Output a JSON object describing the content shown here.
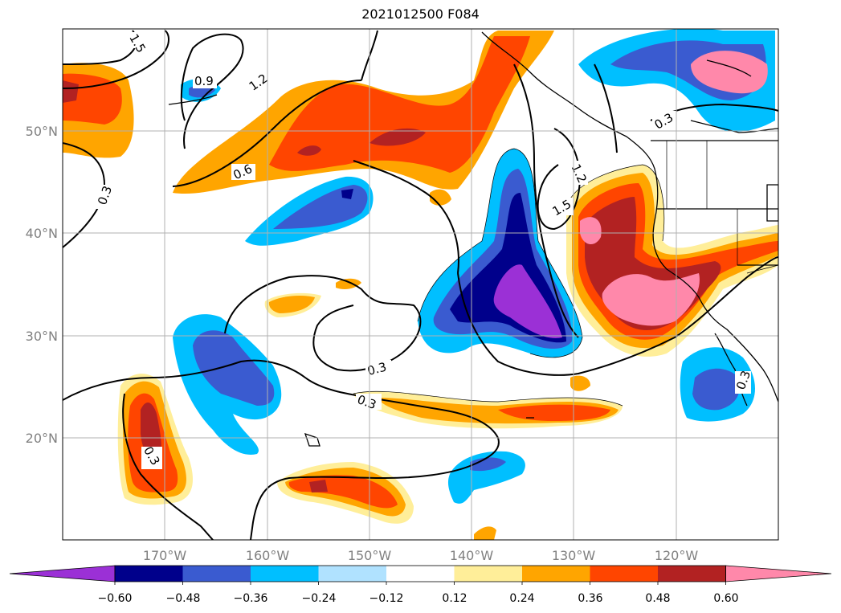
{
  "title": "2021012500 F084",
  "map": {
    "lat_labels": [
      "50°N",
      "40°N",
      "30°N",
      "20°N"
    ],
    "lon_labels": [
      "170°W",
      "160°W",
      "150°W",
      "140°W",
      "130°W",
      "120°W"
    ],
    "contour_labels": [
      "1.5",
      "0.9",
      "1.2",
      "0.6",
      "0.3",
      "1.2",
      "1.5",
      "0.3",
      "0.3",
      "0.3",
      "0.3",
      "0.3"
    ]
  },
  "colorbar": {
    "tick_labels": [
      "−0.60",
      "−0.48",
      "−0.36",
      "−0.24",
      "−0.12",
      "0.12",
      "0.24",
      "0.36",
      "0.48",
      "0.60"
    ],
    "colors": [
      "#9b30d6",
      "#00008b",
      "#3a5bd0",
      "#00bfff",
      "#b0e2ff",
      "#ffffff",
      "#ffee99",
      "#ffa500",
      "#ff4500",
      "#b22222",
      "#ff88aa"
    ]
  }
}
